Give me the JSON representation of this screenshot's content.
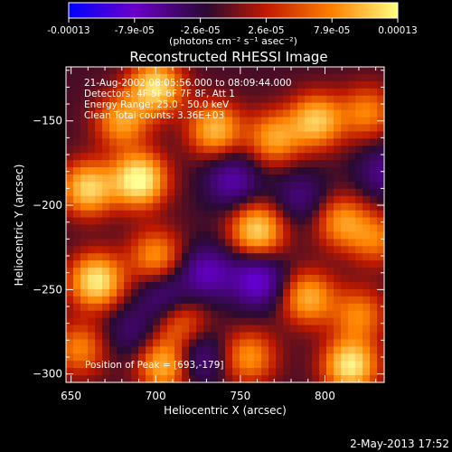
{
  "chart_data": {
    "type": "heatmap",
    "title": "Reconstructed RHESSI Image",
    "xlabel": "Heliocentric X (arcsec)",
    "ylabel": "Heliocentric Y (arcsec)",
    "xlim": [
      647,
      835
    ],
    "ylim": [
      -305,
      -118
    ],
    "xticks": [
      650,
      700,
      750,
      800
    ],
    "yticks": [
      -150,
      -200,
      -250,
      -300
    ],
    "info_lines": [
      "21-Aug-2002 08:05:56.000 to 08:09:44.000",
      "Detectors: 4F 5F 6F 7F 8F, Att 1",
      "Energy Range: 25.0 - 50.0 keV",
      "Clean     Total counts: 3.36E+03"
    ],
    "peak_label": "Position of Peak = [693,-179]",
    "peak_position": [
      693,
      -179
    ],
    "colorbar": {
      "ticks": [
        "-0.00013",
        "-7.9e-05",
        "-2.6e-05",
        "2.6e-05",
        "7.9e-05",
        "0.00013"
      ],
      "range": [
        -0.00013,
        0.00013
      ],
      "units_label": "(photons cm⁻² s⁻¹ asec⁻²)",
      "colors": [
        "#0000ff",
        "#6a00c8",
        "#2a0a30",
        "#c01a00",
        "#ff8000",
        "#ffff80"
      ]
    },
    "blobs": [
      {
        "x": 690,
        "y": -185,
        "v": 1.0
      },
      {
        "x": 660,
        "y": -190,
        "v": 0.8
      },
      {
        "x": 665,
        "y": -245,
        "v": 0.9
      },
      {
        "x": 700,
        "y": -130,
        "v": 0.85
      },
      {
        "x": 735,
        "y": -155,
        "v": 0.7
      },
      {
        "x": 770,
        "y": -160,
        "v": 0.6
      },
      {
        "x": 795,
        "y": -150,
        "v": 0.75
      },
      {
        "x": 825,
        "y": -145,
        "v": 0.5
      },
      {
        "x": 700,
        "y": -230,
        "v": 0.55
      },
      {
        "x": 760,
        "y": -215,
        "v": 0.8
      },
      {
        "x": 810,
        "y": -210,
        "v": 0.55
      },
      {
        "x": 830,
        "y": -220,
        "v": 0.45
      },
      {
        "x": 790,
        "y": -255,
        "v": 0.65
      },
      {
        "x": 820,
        "y": -265,
        "v": 0.5
      },
      {
        "x": 715,
        "y": -270,
        "v": 0.45
      },
      {
        "x": 705,
        "y": -295,
        "v": 0.7
      },
      {
        "x": 755,
        "y": -290,
        "v": 0.55
      },
      {
        "x": 815,
        "y": -295,
        "v": 0.9
      },
      {
        "x": 655,
        "y": -285,
        "v": 0.5
      },
      {
        "x": 680,
        "y": -150,
        "v": 0.6
      },
      {
        "x": 730,
        "y": -240,
        "v": -0.5
      },
      {
        "x": 760,
        "y": -245,
        "v": -0.6
      },
      {
        "x": 745,
        "y": -185,
        "v": -0.45
      },
      {
        "x": 705,
        "y": -255,
        "v": -0.35
      },
      {
        "x": 725,
        "y": -290,
        "v": -0.4
      },
      {
        "x": 835,
        "y": -180,
        "v": -0.35
      },
      {
        "x": 685,
        "y": -275,
        "v": -0.25
      },
      {
        "x": 785,
        "y": -195,
        "v": -0.3
      }
    ]
  },
  "footer": {
    "date": "2-May-2013 17:52"
  }
}
